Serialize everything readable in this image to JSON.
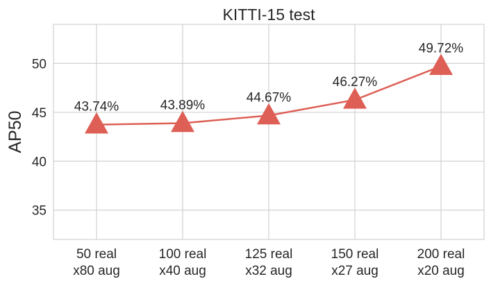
{
  "chart_data": {
    "type": "line",
    "title": "KITTI-15 test",
    "xlabel": "",
    "ylabel": "AP50",
    "categories": [
      [
        "50 real",
        "x80 aug"
      ],
      [
        "100 real",
        "x40 aug"
      ],
      [
        "125 real",
        "x32 aug"
      ],
      [
        "150 real",
        "x27 aug"
      ],
      [
        "200 real",
        "x20 aug"
      ]
    ],
    "series": [
      {
        "values": [
          43.74,
          43.89,
          44.67,
          46.27,
          49.72
        ],
        "marker": "triangle",
        "color": "#dd5f55"
      }
    ],
    "data_labels": [
      "43.74%",
      "43.89%",
      "44.67%",
      "46.27%",
      "49.72%"
    ],
    "ylim": [
      32,
      54
    ],
    "yticks": [
      35,
      40,
      45,
      50
    ],
    "grid": true,
    "legend": "none"
  }
}
